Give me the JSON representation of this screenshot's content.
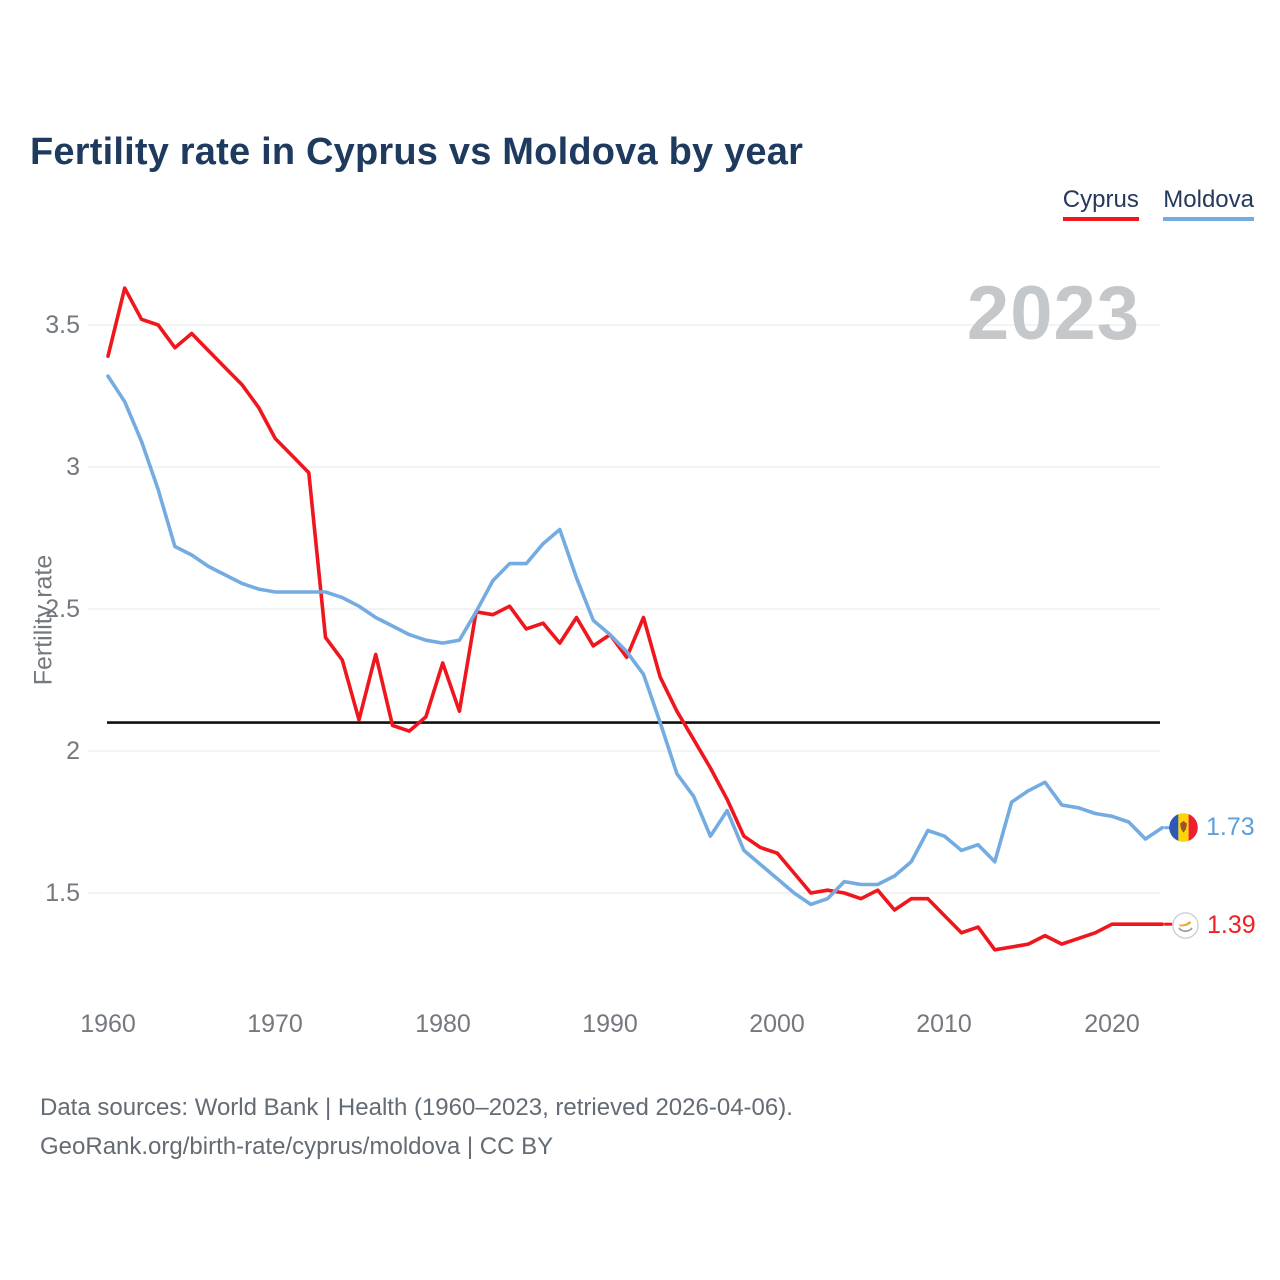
{
  "title": "Fertility rate in Cyprus vs Moldova by year",
  "legend": {
    "cyprus_label": "Cyprus",
    "moldova_label": "Moldova",
    "cyprus_color": "#f0161d",
    "moldova_color": "#74ace2"
  },
  "watermark_year": "2023",
  "axes": {
    "y_label": "Fertility rate",
    "y_ticks": [
      "3.5",
      "3",
      "2.5",
      "2",
      "1.5"
    ],
    "x_ticks": [
      "1960",
      "1970",
      "1980",
      "1990",
      "2000",
      "2010",
      "2020"
    ]
  },
  "end_labels": {
    "moldova": {
      "value": "1.73",
      "icon": "moldova-flag-icon",
      "color": "#5d9fdd"
    },
    "cyprus": {
      "value": "1.39",
      "icon": "cyprus-flag-icon",
      "color": "#ef2125"
    }
  },
  "footer": {
    "line1": "Data sources: World Bank | Health (1960–2023, retrieved 2026-04-06).",
    "line2": "GeoRank.org/birth-rate/cyprus/moldova | CC BY"
  },
  "chart_data": {
    "type": "line",
    "title": "Fertility rate in Cyprus vs Moldova by year",
    "ylabel": "Fertility rate",
    "x_start": 1960,
    "x_end": 2023,
    "x_tick_step": 10,
    "ylim": [
      1.1,
      3.75
    ],
    "y_gridlines": [
      3.5,
      3.0,
      2.5,
      2.0,
      1.5
    ],
    "grid": "horizontal-only",
    "legend_position": "top-right",
    "reference_line": {
      "value": 2.1,
      "color": "#111111"
    },
    "series": [
      {
        "name": "Cyprus",
        "color": "#f0161d",
        "final_value": 1.39,
        "values": [
          3.39,
          3.63,
          3.52,
          3.5,
          3.42,
          3.47,
          3.41,
          3.35,
          3.29,
          3.21,
          3.1,
          3.04,
          2.98,
          2.4,
          2.32,
          2.11,
          2.34,
          2.09,
          2.07,
          2.12,
          2.31,
          2.14,
          2.49,
          2.48,
          2.51,
          2.43,
          2.45,
          2.38,
          2.47,
          2.37,
          2.41,
          2.33,
          2.47,
          2.26,
          2.14,
          2.04,
          1.94,
          1.83,
          1.7,
          1.66,
          1.64,
          1.57,
          1.5,
          1.51,
          1.5,
          1.48,
          1.51,
          1.44,
          1.48,
          1.48,
          1.42,
          1.36,
          1.38,
          1.3,
          1.31,
          1.32,
          1.35,
          1.32,
          1.34,
          1.36,
          1.39,
          1.39,
          1.39,
          1.39
        ]
      },
      {
        "name": "Moldova",
        "color": "#74ace2",
        "final_value": 1.73,
        "values": [
          3.32,
          3.23,
          3.09,
          2.92,
          2.72,
          2.69,
          2.65,
          2.62,
          2.59,
          2.57,
          2.56,
          2.56,
          2.56,
          2.56,
          2.54,
          2.51,
          2.47,
          2.44,
          2.41,
          2.39,
          2.38,
          2.39,
          2.49,
          2.6,
          2.66,
          2.66,
          2.73,
          2.78,
          2.61,
          2.46,
          2.41,
          2.35,
          2.27,
          2.1,
          1.92,
          1.84,
          1.7,
          1.79,
          1.65,
          1.6,
          1.55,
          1.5,
          1.46,
          1.48,
          1.54,
          1.53,
          1.53,
          1.56,
          1.61,
          1.72,
          1.7,
          1.65,
          1.67,
          1.61,
          1.82,
          1.86,
          1.89,
          1.81,
          1.8,
          1.78,
          1.77,
          1.75,
          1.69,
          1.73
        ]
      }
    ]
  }
}
